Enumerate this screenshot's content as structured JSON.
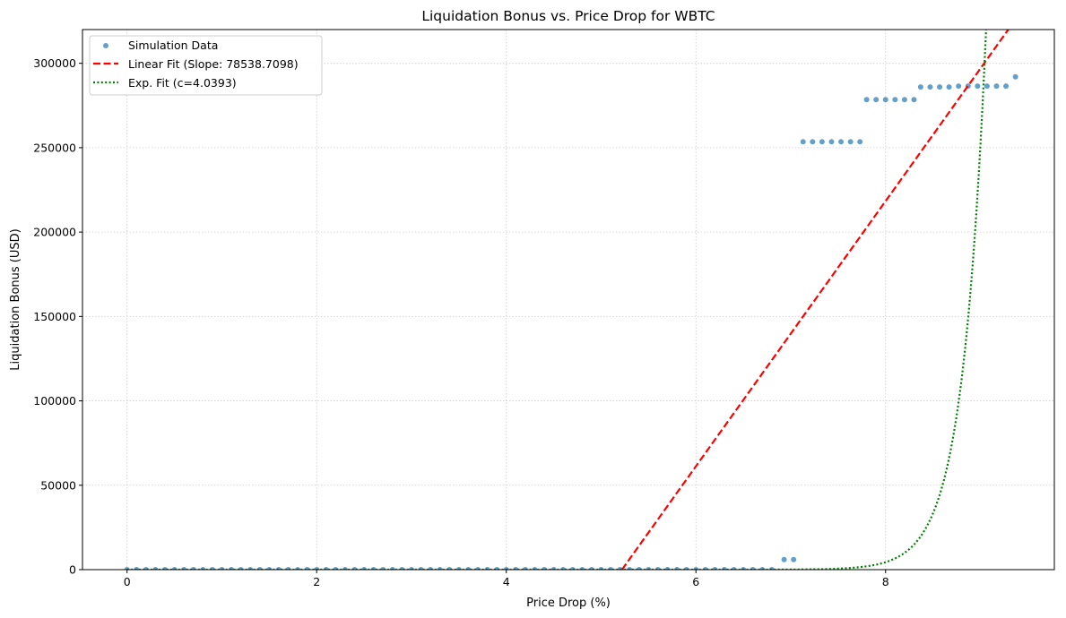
{
  "chart_data": {
    "type": "scatter",
    "title": "Liquidation Bonus vs. Price Drop for WBTC",
    "xlabel": "Price Drop (%)",
    "ylabel": "Liquidation Bonus (USD)",
    "xlim": [
      -0.47,
      9.78
    ],
    "ylim": [
      0,
      320000
    ],
    "xticks": [
      0,
      2,
      4,
      6,
      8
    ],
    "yticks": [
      0,
      50000,
      100000,
      150000,
      200000,
      250000,
      300000
    ],
    "grid": true,
    "legend_position": "upper-left",
    "colors": {
      "scatter": "#1f77b4",
      "linear": "#ff0000",
      "exp": "#008000"
    },
    "series": [
      {
        "name": "Simulation Data",
        "kind": "scatter",
        "x": [
          0.0,
          0.1,
          0.2,
          0.3,
          0.4,
          0.5,
          0.6,
          0.7,
          0.8,
          0.9,
          1.0,
          1.1,
          1.2,
          1.3,
          1.4,
          1.5,
          1.6,
          1.7,
          1.8,
          1.9,
          2.0,
          2.1,
          2.2,
          2.3,
          2.4,
          2.5,
          2.6,
          2.7,
          2.8,
          2.9,
          3.0,
          3.1,
          3.2,
          3.3,
          3.4,
          3.5,
          3.6,
          3.7,
          3.8,
          3.9,
          4.0,
          4.1,
          4.2,
          4.3,
          4.4,
          4.5,
          4.6,
          4.7,
          4.8,
          4.9,
          5.0,
          5.1,
          5.2,
          5.3,
          5.4,
          5.5,
          5.6,
          5.7,
          5.8,
          5.9,
          6.0,
          6.1,
          6.2,
          6.3,
          6.4,
          6.5,
          6.6,
          6.7,
          6.8,
          6.93,
          7.03,
          7.13,
          7.23,
          7.33,
          7.43,
          7.53,
          7.63,
          7.73,
          7.8,
          7.9,
          8.0,
          8.1,
          8.2,
          8.3,
          8.37,
          8.47,
          8.57,
          8.67,
          8.77,
          8.87,
          8.97,
          9.07,
          9.17,
          9.27,
          9.37
        ],
        "y": [
          0,
          0,
          0,
          0,
          0,
          0,
          0,
          0,
          0,
          0,
          0,
          0,
          0,
          0,
          0,
          0,
          0,
          0,
          0,
          0,
          0,
          0,
          0,
          0,
          0,
          0,
          0,
          0,
          0,
          0,
          0,
          0,
          0,
          0,
          0,
          0,
          0,
          0,
          0,
          0,
          0,
          0,
          0,
          0,
          0,
          0,
          0,
          0,
          0,
          0,
          0,
          0,
          0,
          0,
          0,
          0,
          0,
          0,
          0,
          0,
          0,
          0,
          0,
          0,
          0,
          0,
          0,
          0,
          0,
          6000,
          6000,
          253500,
          253500,
          253500,
          253500,
          253500,
          253500,
          253500,
          278500,
          278500,
          278500,
          278500,
          278500,
          278500,
          286000,
          286000,
          286000,
          286000,
          286500,
          286500,
          286500,
          286500,
          286500,
          286500,
          292000
        ]
      },
      {
        "name": "Linear Fit (Slope: 78538.7098)",
        "kind": "line",
        "style": "dashed",
        "slope": 78538.7098,
        "x_intercept": 5.22
      },
      {
        "name": "Exp. Fit (c=4.0393)",
        "kind": "line",
        "style": "dotted",
        "c": 4.0393
      }
    ]
  }
}
